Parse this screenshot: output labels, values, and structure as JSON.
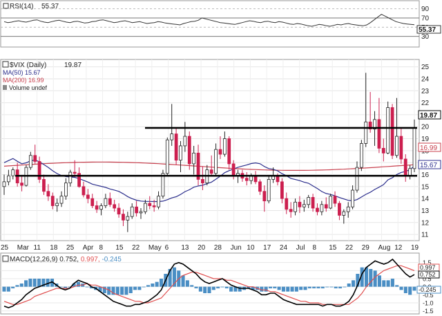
{
  "rsi_panel": {
    "label": "RSI(14)",
    "value_text": "55.37",
    "levels": [
      90,
      70,
      50,
      30
    ],
    "overbought": 70,
    "oversold": 30,
    "current": 55.37,
    "series": [
      62,
      60,
      61,
      63,
      64,
      62,
      61,
      63,
      65,
      66,
      63,
      61,
      60,
      62,
      64,
      65,
      63,
      61,
      60,
      62,
      63,
      61,
      59,
      60,
      62,
      63,
      65,
      66,
      64,
      62,
      60,
      61,
      63,
      64,
      62,
      60,
      61,
      62,
      60,
      58,
      59,
      60,
      62,
      61,
      59,
      58,
      57,
      56,
      55,
      58,
      60,
      62,
      63,
      65,
      70,
      68,
      66,
      64,
      62,
      60,
      59,
      58,
      57,
      56,
      58,
      60,
      62,
      64,
      63,
      61,
      60,
      62,
      63,
      61,
      60,
      62,
      61,
      59,
      57,
      56,
      58,
      57,
      55,
      53,
      52,
      54,
      56,
      55,
      53,
      52,
      54,
      56,
      55,
      57,
      58,
      56,
      55,
      54,
      53,
      55,
      60,
      66,
      72,
      78,
      74,
      70,
      66,
      62,
      60,
      58,
      57,
      56,
      55.37
    ]
  },
  "vix_panel": {
    "title": "$VIX (Daily)",
    "close_text": "19.87",
    "ma50_label": "MA(50)",
    "ma50_text": "15.67",
    "ma200_label": "MA(200)",
    "ma200_text": "16.99",
    "volume_label": "Volume undef",
    "y_ticks": [
      25,
      24,
      23,
      22,
      21,
      20,
      19,
      18,
      17,
      16,
      15,
      14,
      13,
      12,
      11
    ],
    "x_ticks": [
      "25",
      "Mar",
      "11",
      "18",
      "25",
      "Apr",
      "8",
      "15",
      "22",
      "May",
      "6",
      "13",
      "20",
      "28",
      "Jun",
      "10",
      "17",
      "24",
      "Jul",
      "8",
      "15",
      "22",
      "29",
      "Aug",
      "12",
      "19"
    ],
    "resistance_level": 19.9,
    "support_level": 15.9,
    "colors": {
      "up_candle": "#ffffff",
      "down_candle": "#cc1f4f",
      "ma50": "#2b2e8c",
      "ma200": "#c8404e",
      "price_box": "#ffffff",
      "ma50_box": "#ffffff",
      "ma200_box": "#ffffff"
    }
  },
  "chart_data": [
    {
      "type": "line",
      "title": "RSI(14)",
      "series": [
        {
          "name": "RSI(14)",
          "last": 55.37
        }
      ],
      "ylim": [
        10,
        100
      ]
    },
    {
      "type": "candlestick",
      "title": "$VIX (Daily)",
      "series": [
        {
          "name": "$VIX (Daily)",
          "last": 19.87
        },
        {
          "name": "MA(50)",
          "last": 15.67
        },
        {
          "name": "MA(200)",
          "last": 16.99
        }
      ],
      "ylim": [
        10.6,
        25.5
      ],
      "candles": [
        [
          15.0,
          16.0,
          14.3,
          15.4
        ],
        [
          15.4,
          16.4,
          15.1,
          15.9
        ],
        [
          15.9,
          16.6,
          15.6,
          16.4
        ],
        [
          16.4,
          17.0,
          15.0,
          15.3
        ],
        [
          15.3,
          15.9,
          14.6,
          15.1
        ],
        [
          15.1,
          16.8,
          15.0,
          16.6
        ],
        [
          16.6,
          17.9,
          16.4,
          17.6
        ],
        [
          17.6,
          18.5,
          16.9,
          17.1
        ],
        [
          17.1,
          17.5,
          15.3,
          15.6
        ],
        [
          15.6,
          16.0,
          14.3,
          14.6
        ],
        [
          14.6,
          15.2,
          13.8,
          14.2
        ],
        [
          14.2,
          14.5,
          13.1,
          13.4
        ],
        [
          13.4,
          14.0,
          12.9,
          13.6
        ],
        [
          13.6,
          14.6,
          13.3,
          14.2
        ],
        [
          14.2,
          15.7,
          13.9,
          15.3
        ],
        [
          15.3,
          16.4,
          15.0,
          16.2
        ],
        [
          16.2,
          17.2,
          15.8,
          16.1
        ],
        [
          16.1,
          16.6,
          14.9,
          15.0
        ],
        [
          15.0,
          15.4,
          14.1,
          14.3
        ],
        [
          14.3,
          14.8,
          13.6,
          14.0
        ],
        [
          14.0,
          14.4,
          13.2,
          13.4
        ],
        [
          13.4,
          13.8,
          12.8,
          13.1
        ],
        [
          13.1,
          13.6,
          12.6,
          13.4
        ],
        [
          13.4,
          14.4,
          13.2,
          14.0
        ],
        [
          14.0,
          14.5,
          13.3,
          13.5
        ],
        [
          13.5,
          13.9,
          12.9,
          13.2
        ],
        [
          13.2,
          13.6,
          12.4,
          12.7
        ],
        [
          12.7,
          13.1,
          11.7,
          12.2
        ],
        [
          12.2,
          12.9,
          11.2,
          12.5
        ],
        [
          12.5,
          13.6,
          12.3,
          13.3
        ],
        [
          13.3,
          13.8,
          12.5,
          12.8
        ],
        [
          12.8,
          13.2,
          12.3,
          12.9
        ],
        [
          12.9,
          13.9,
          12.7,
          13.6
        ],
        [
          13.6,
          14.2,
          13.1,
          13.4
        ],
        [
          13.4,
          13.9,
          12.9,
          13.3
        ],
        [
          13.3,
          14.6,
          13.1,
          14.2
        ],
        [
          14.2,
          16.4,
          14.0,
          16.1
        ],
        [
          16.1,
          19.1,
          15.9,
          18.9
        ],
        [
          18.9,
          21.9,
          18.4,
          19.4
        ],
        [
          19.4,
          19.9,
          16.8,
          17.2
        ],
        [
          17.2,
          18.8,
          16.2,
          18.4
        ],
        [
          18.4,
          20.4,
          17.9,
          19.2
        ],
        [
          19.2,
          19.6,
          16.4,
          16.9
        ],
        [
          16.9,
          18.4,
          16.0,
          17.8
        ],
        [
          17.8,
          18.5,
          15.1,
          15.6
        ],
        [
          15.6,
          16.7,
          14.7,
          15.3
        ],
        [
          15.3,
          16.8,
          15.1,
          16.4
        ],
        [
          16.4,
          17.6,
          15.9,
          16.1
        ],
        [
          16.1,
          18.6,
          15.9,
          18.1
        ],
        [
          18.1,
          19.2,
          17.3,
          17.7
        ],
        [
          17.7,
          19.6,
          17.5,
          19.0
        ],
        [
          19.0,
          19.2,
          16.4,
          16.9
        ],
        [
          16.9,
          17.2,
          15.6,
          15.9
        ],
        [
          15.9,
          16.4,
          15.3,
          16.1
        ],
        [
          16.1,
          16.4,
          15.4,
          15.7
        ],
        [
          15.7,
          16.2,
          15.1,
          15.5
        ],
        [
          15.5,
          16.1,
          15.2,
          15.9
        ],
        [
          15.9,
          16.3,
          15.2,
          15.4
        ],
        [
          15.4,
          15.6,
          14.3,
          14.6
        ],
        [
          14.6,
          15.1,
          12.9,
          13.8
        ],
        [
          13.8,
          15.9,
          13.6,
          15.6
        ],
        [
          15.6,
          16.6,
          15.3,
          15.9
        ],
        [
          15.9,
          16.1,
          15.1,
          15.4
        ],
        [
          15.4,
          15.7,
          13.6,
          14.0
        ],
        [
          14.0,
          14.5,
          12.7,
          13.1
        ],
        [
          13.1,
          13.7,
          12.4,
          12.9
        ],
        [
          12.9,
          14.0,
          12.6,
          13.7
        ],
        [
          13.7,
          14.2,
          12.8,
          13.3
        ],
        [
          13.3,
          13.9,
          12.9,
          13.5
        ],
        [
          13.5,
          14.3,
          13.2,
          14.1
        ],
        [
          14.1,
          14.4,
          12.9,
          13.2
        ],
        [
          13.2,
          13.6,
          12.6,
          12.9
        ],
        [
          12.9,
          13.8,
          12.6,
          13.5
        ],
        [
          13.5,
          14.1,
          12.9,
          13.2
        ],
        [
          13.2,
          14.4,
          13.1,
          14.2
        ],
        [
          14.2,
          14.6,
          13.3,
          13.6
        ],
        [
          13.6,
          13.8,
          12.2,
          12.6
        ],
        [
          12.6,
          13.1,
          11.9,
          12.9
        ],
        [
          12.9,
          13.7,
          12.4,
          13.3
        ],
        [
          13.3,
          15.1,
          13.1,
          14.7
        ],
        [
          14.7,
          17.1,
          14.5,
          16.6
        ],
        [
          16.6,
          18.9,
          16.3,
          18.6
        ],
        [
          18.6,
          24.5,
          18.3,
          20.4
        ],
        [
          20.4,
          22.9,
          19.5,
          19.8
        ],
        [
          19.8,
          21.3,
          18.4,
          20.6
        ],
        [
          20.6,
          22.4,
          17.8,
          18.2
        ],
        [
          18.2,
          19.0,
          17.1,
          17.8
        ],
        [
          17.8,
          22.1,
          17.7,
          21.6
        ],
        [
          21.6,
          21.9,
          17.3,
          17.6
        ],
        [
          17.6,
          22.4,
          17.4,
          19.2
        ],
        [
          19.2,
          19.9,
          16.9,
          17.3
        ],
        [
          17.3,
          17.7,
          15.4,
          15.9
        ],
        [
          15.9,
          16.8,
          15.6,
          16.5
        ],
        [
          16.5,
          20.6,
          16.2,
          19.87
        ]
      ]
    },
    {
      "type": "line",
      "title": "MACD(12,26,9)",
      "series": [
        {
          "name": "MACD(12,26,9)",
          "last": 0.752
        },
        {
          "name": "Signal",
          "last": 0.997
        },
        {
          "name": "Histogram",
          "last": -0.245
        }
      ],
      "ylim": [
        -1.6,
        2.0
      ]
    }
  ],
  "macd_panel": {
    "label": "MACD(12,26,9)",
    "macd_text": "0.752,",
    "signal_text": "0.997,",
    "hist_text": "-0.245",
    "y_ticks": [
      "1.5",
      "1.0",
      "0.5",
      "0.0",
      "-0.5",
      "-1.0",
      "-1.5"
    ],
    "box_macd": "0.752",
    "box_signal": "0.997",
    "box_hist": "-0.245",
    "colors": {
      "macd": "#000000",
      "signal": "#e05050",
      "hist": "#4a8ec4"
    },
    "macd": [
      -1.2,
      -1.3,
      -1.2,
      -1.0,
      -0.8,
      -0.5,
      -0.3,
      -0.1,
      0.0,
      0.1,
      0.2,
      0.3,
      0.1,
      -0.1,
      -0.2,
      -0.1,
      0.2,
      0.4,
      0.3,
      0.2,
      0.0,
      -0.1,
      -0.3,
      -0.5,
      -0.7,
      -0.9,
      -1.0,
      -1.1,
      -1.2,
      -1.2,
      -1.1,
      -1.1,
      -1.0,
      -0.9,
      -0.7,
      -0.5,
      -0.2,
      0.4,
      1.0,
      1.4,
      1.5,
      1.4,
      1.2,
      1.0,
      0.8,
      0.5,
      0.3,
      0.2,
      0.3,
      0.4,
      0.5,
      0.3,
      0.1,
      0.0,
      -0.1,
      -0.1,
      -0.1,
      -0.2,
      -0.3,
      -0.5,
      -0.5,
      -0.4,
      -0.4,
      -0.6,
      -0.8,
      -0.9,
      -1.0,
      -1.1,
      -1.1,
      -1.1,
      -1.1,
      -1.1,
      -1.1,
      -1.2,
      -1.1,
      -1.1,
      -1.2,
      -1.2,
      -1.1,
      -0.9,
      -0.5,
      0.1,
      0.8,
      1.2,
      1.4,
      1.6,
      1.5,
      1.4,
      1.5,
      1.7,
      1.4,
      1.1,
      0.8,
      0.6,
      0.752
    ],
    "signal": [
      -0.9,
      -1.0,
      -1.1,
      -1.1,
      -1.0,
      -0.9,
      -0.8,
      -0.6,
      -0.5,
      -0.4,
      -0.3,
      -0.2,
      -0.1,
      -0.1,
      -0.1,
      -0.1,
      0.0,
      0.1,
      0.1,
      0.2,
      0.1,
      0.1,
      0.0,
      -0.1,
      -0.2,
      -0.4,
      -0.5,
      -0.6,
      -0.7,
      -0.8,
      -0.9,
      -0.9,
      -1.0,
      -1.0,
      -0.9,
      -0.8,
      -0.7,
      -0.4,
      -0.1,
      0.2,
      0.5,
      0.7,
      0.8,
      0.9,
      0.9,
      0.8,
      0.7,
      0.6,
      0.5,
      0.5,
      0.5,
      0.4,
      0.4,
      0.3,
      0.2,
      0.1,
      0.0,
      0.0,
      -0.1,
      -0.2,
      -0.2,
      -0.3,
      -0.3,
      -0.4,
      -0.5,
      -0.6,
      -0.7,
      -0.8,
      -0.9,
      -0.9,
      -1.0,
      -1.0,
      -1.0,
      -1.1,
      -1.1,
      -1.1,
      -1.1,
      -1.1,
      -1.1,
      -1.1,
      -0.9,
      -0.7,
      -0.4,
      0.0,
      0.3,
      0.6,
      0.8,
      1.0,
      1.1,
      1.2,
      1.3,
      1.3,
      1.2,
      1.1,
      0.997
    ]
  }
}
